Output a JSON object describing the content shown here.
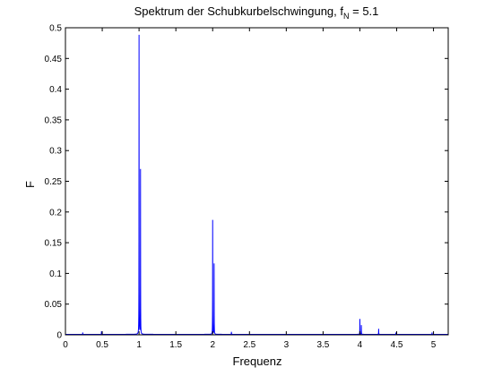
{
  "chart_data": {
    "type": "line",
    "title": "Spektrum der Schubkurbelschwingung, f",
    "title_subscript": "N",
    "title_suffix": " = 5.1",
    "xlabel": "Frequenz",
    "ylabel": "F",
    "xlim": [
      0,
      5.2
    ],
    "ylim": [
      0,
      0.5
    ],
    "xticks": [
      0,
      0.5,
      1,
      1.5,
      2,
      2.5,
      3,
      3.5,
      4,
      4.5,
      5
    ],
    "xtick_labels": [
      "0",
      "0.5",
      "1",
      "1.5",
      "2",
      "2.5",
      "3",
      "3.5",
      "4",
      "4.5",
      "5"
    ],
    "yticks": [
      0,
      0.05,
      0.1,
      0.15,
      0.2,
      0.25,
      0.3,
      0.35,
      0.4,
      0.45,
      0.5
    ],
    "ytick_labels": [
      "0",
      "0.05",
      "0.1",
      "0.15",
      "0.2",
      "0.25",
      "0.3",
      "0.35",
      "0.4",
      "0.45",
      "0.5"
    ],
    "grid": false,
    "line_color": "#0000ff",
    "peaks": [
      {
        "x": 0.235,
        "y": 0.003
      },
      {
        "x": 0.49,
        "y": 0.005
      },
      {
        "x": 1.0,
        "y": 0.487
      },
      {
        "x": 1.02,
        "y": 0.268
      },
      {
        "x": 2.0,
        "y": 0.186
      },
      {
        "x": 2.02,
        "y": 0.115
      },
      {
        "x": 2.255,
        "y": 0.004
      },
      {
        "x": 4.0,
        "y": 0.025
      },
      {
        "x": 4.02,
        "y": 0.015
      },
      {
        "x": 4.255,
        "y": 0.009
      },
      {
        "x": 4.49,
        "y": 0.003
      },
      {
        "x": 4.98,
        "y": 0.003
      }
    ]
  }
}
